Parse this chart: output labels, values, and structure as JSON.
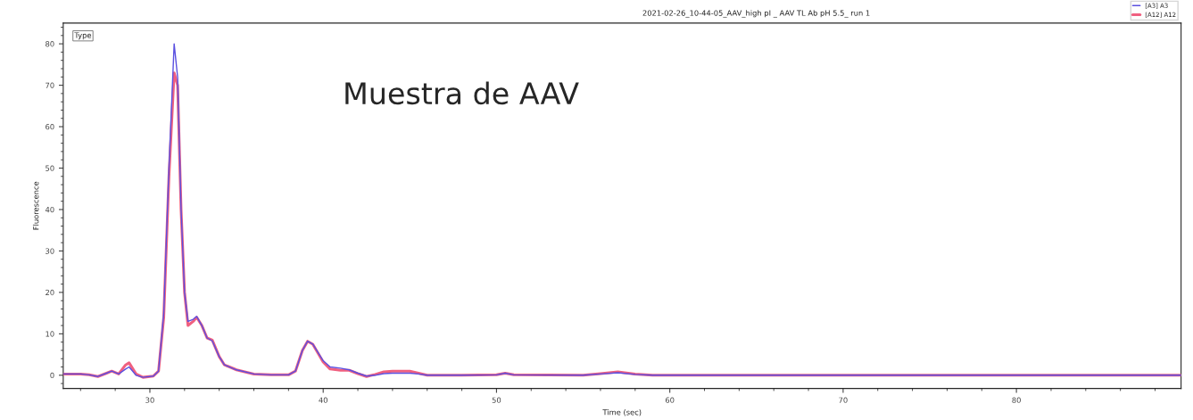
{
  "chart_data": {
    "type": "line",
    "title": "2021-02-26_10-44-05_AAV_high pI _ AAV TL Ab pH 5.5_ run 1",
    "xlabel": "Time (sec)",
    "ylabel": "Fluorescence",
    "annotations": [
      "Type",
      "Muestra de AAV"
    ],
    "xlim": [
      25,
      89.5
    ],
    "xticks": [
      30,
      40,
      50,
      60,
      70,
      80
    ],
    "ylim": [
      -3.2,
      85
    ],
    "yticks": [
      0,
      10,
      20,
      30,
      40,
      50,
      60,
      70,
      80
    ],
    "grid": false,
    "legend": "top right",
    "marker": "none",
    "line_style": "solid",
    "series": [
      {
        "name": "[A3] A3",
        "color": "#5a50e0",
        "x": [
          25,
          26,
          26.5,
          27,
          27.5,
          27.8,
          28.2,
          28.6,
          28.8,
          29.2,
          29.6,
          30.2,
          30.5,
          30.8,
          31.1,
          31.4,
          31.6,
          31.8,
          32.0,
          32.2,
          32.5,
          32.7,
          33.0,
          33.3,
          33.6,
          34.0,
          34.3,
          35,
          36,
          37,
          38,
          38.4,
          38.8,
          39.1,
          39.4,
          40,
          40.4,
          41,
          41.5,
          42,
          42.5,
          43,
          43.5,
          44,
          45,
          45.5,
          46,
          48,
          50,
          50.5,
          51,
          55,
          56,
          57,
          58,
          59,
          60,
          70,
          80,
          89.5
        ],
        "values": [
          0.3,
          0.3,
          0.1,
          -0.3,
          0.5,
          1.0,
          0.3,
          1.5,
          2.0,
          0,
          -0.5,
          -0.2,
          1,
          15,
          50,
          80,
          72,
          40,
          20,
          13,
          13.5,
          14.2,
          12,
          9,
          8.3,
          4.5,
          2.5,
          1.3,
          0.3,
          0.1,
          0.1,
          1,
          6,
          8.2,
          7.5,
          3.5,
          2,
          1.7,
          1.3,
          0.5,
          -0.2,
          0,
          0.4,
          0.5,
          0.5,
          0.3,
          0,
          0,
          0.1,
          0.5,
          0.1,
          0,
          0.3,
          0.6,
          0.2,
          0,
          0,
          0,
          0,
          0
        ]
      },
      {
        "name": "[A12] A12",
        "color": "#f06080",
        "x": [
          25,
          26,
          26.5,
          27,
          27.5,
          27.8,
          28.2,
          28.6,
          28.8,
          29.2,
          29.6,
          30.2,
          30.5,
          30.8,
          31.1,
          31.4,
          31.6,
          31.8,
          32.0,
          32.2,
          32.5,
          32.7,
          33.0,
          33.3,
          33.6,
          34.0,
          34.3,
          35,
          36,
          37,
          38,
          38.4,
          38.8,
          39.1,
          39.4,
          40,
          40.4,
          41,
          41.5,
          42,
          42.5,
          43,
          43.5,
          44,
          45,
          45.5,
          46,
          48,
          50,
          50.5,
          51,
          55,
          56,
          57,
          58,
          59,
          60,
          70,
          80,
          89.5
        ],
        "values": [
          0.3,
          0.3,
          0.1,
          -0.3,
          0.5,
          1.0,
          0.3,
          2.5,
          3.0,
          0.3,
          -0.5,
          -0.2,
          1,
          14,
          48,
          73,
          70,
          40,
          20,
          12,
          13,
          14,
          12,
          9,
          8.5,
          4.5,
          2.5,
          1.3,
          0.3,
          0.1,
          0.1,
          1,
          6,
          8.2,
          7.5,
          3.2,
          1.5,
          1.2,
          1.2,
          0.4,
          -0.3,
          0.2,
          0.8,
          1.0,
          1.0,
          0.5,
          0,
          0,
          0.1,
          0.5,
          0.1,
          0,
          0.4,
          0.8,
          0.3,
          0,
          0,
          0,
          0,
          0
        ]
      }
    ]
  }
}
